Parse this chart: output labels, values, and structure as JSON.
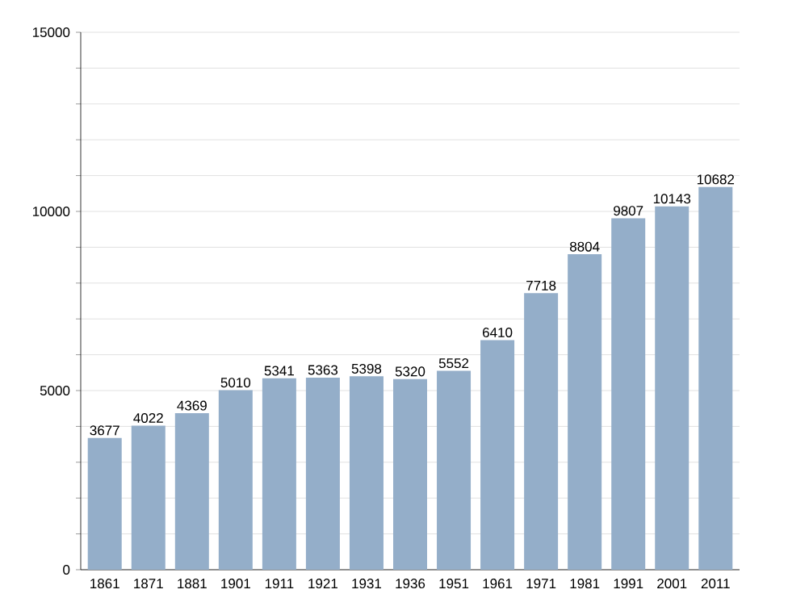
{
  "chart_data": {
    "type": "bar",
    "categories": [
      "1861",
      "1871",
      "1881",
      "1901",
      "1911",
      "1921",
      "1931",
      "1936",
      "1951",
      "1961",
      "1971",
      "1981",
      "1991",
      "2001",
      "2011"
    ],
    "values": [
      3677,
      4022,
      4369,
      5010,
      5341,
      5363,
      5398,
      5320,
      5552,
      6410,
      7718,
      8804,
      9807,
      10143,
      10682
    ],
    "color": "#94aec9",
    "ylim": [
      0,
      15000
    ],
    "yticks": [
      0,
      {
        "value": 1000,
        "label": null
      },
      {
        "value": 2000,
        "label": null
      },
      {
        "value": 3000,
        "label": null
      },
      {
        "value": 4000,
        "label": null
      },
      5000,
      {
        "value": 6000,
        "label": null
      },
      {
        "value": 7000,
        "label": null
      },
      {
        "value": 8000,
        "label": null
      },
      {
        "value": 9000,
        "label": null
      },
      10000,
      {
        "value": 11000,
        "label": null
      },
      {
        "value": 12000,
        "label": null
      },
      {
        "value": 13000,
        "label": null
      },
      {
        "value": 14000,
        "label": null
      },
      15000
    ],
    "grid": "y",
    "data_labels": true
  }
}
